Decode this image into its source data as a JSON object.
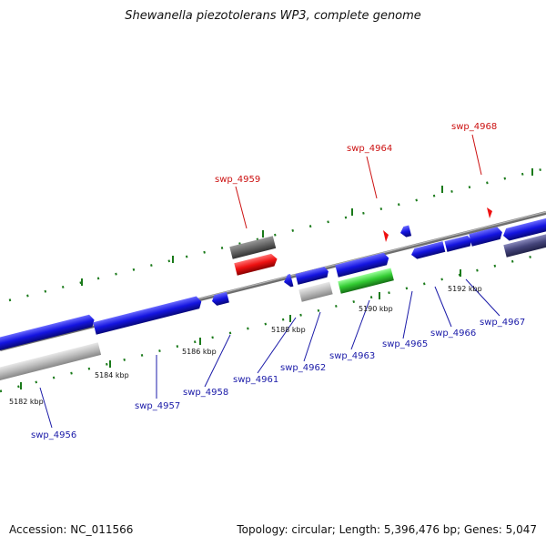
{
  "title": "Shewanella piezotolerans WP3, complete genome",
  "accession": "Accession: NC_011566",
  "summary": "Topology: circular; Length: 5,396,476 bp; Genes: 5,047",
  "scale": [
    "5182 kbp",
    "5184 kbp",
    "5186 kbp",
    "5188 kbp",
    "5190 kbp",
    "5192 kbp"
  ],
  "genes_top": [
    "swp_4959",
    "swp_4964",
    "swp_4968"
  ],
  "genes_bottom": [
    "swp_4956",
    "swp_4957",
    "swp_4958",
    "swp_4961",
    "swp_4962",
    "swp_4963",
    "swp_4965",
    "swp_4966",
    "swp_4967"
  ],
  "colors": {
    "cds": "#1414e0",
    "rna": "#cc1111",
    "pseudo": "#bbbbbb",
    "other": "#666666",
    "green": "#33cc33",
    "dark": "#44447a",
    "backbone": "#888888"
  }
}
